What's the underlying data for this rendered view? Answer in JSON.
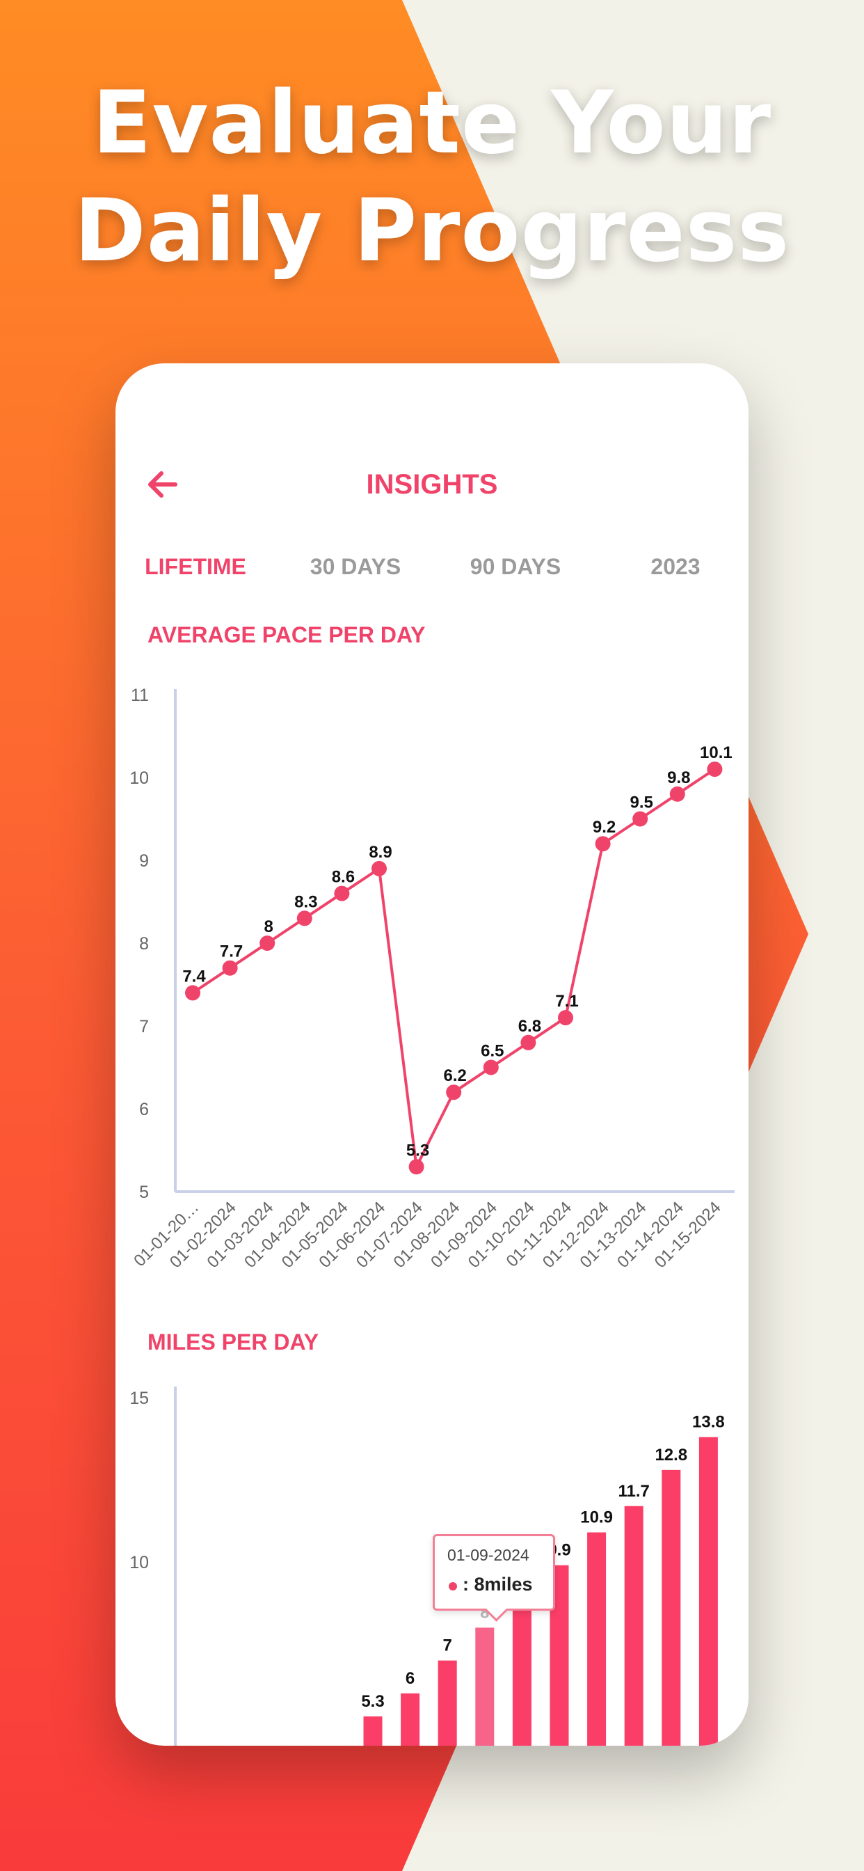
{
  "headline": {
    "line1": "Evaluate Your",
    "line2": "Daily Progress"
  },
  "header": {
    "title": "INSIGHTS",
    "back_icon": "arrow-left-icon"
  },
  "tabs": [
    {
      "label": "LIFETIME",
      "active": true
    },
    {
      "label": "30 DAYS",
      "active": false
    },
    {
      "label": "90 DAYS",
      "active": false
    },
    {
      "label": "2023",
      "active": false
    }
  ],
  "colors": {
    "accent": "#f0436a",
    "bar": "#fb3e67",
    "inactive_tab": "#9a9a9a",
    "orange": "#ff8c24",
    "red": "#f93b3b"
  },
  "chart_data": [
    {
      "type": "line",
      "title": "AVERAGE PACE PER DAY",
      "x": [
        "01-01-20…",
        "01-02-2024",
        "01-03-2024",
        "01-04-2024",
        "01-05-2024",
        "01-06-2024",
        "01-07-2024",
        "01-08-2024",
        "01-09-2024",
        "01-10-2024",
        "01-11-2024",
        "01-12-2024",
        "01-13-2024",
        "01-14-2024",
        "01-15-2024"
      ],
      "values": [
        7.4,
        7.7,
        8,
        8.3,
        8.6,
        8.9,
        5.3,
        6.2,
        6.5,
        6.8,
        7.1,
        9.2,
        9.5,
        9.8,
        10.1
      ],
      "ylim": [
        5,
        11
      ],
      "yticks": [
        5,
        6,
        7,
        8,
        9,
        10,
        11
      ],
      "grid": false
    },
    {
      "type": "bar",
      "title": "MILES PER DAY",
      "values": [
        5.3,
        6,
        7,
        8,
        8.9,
        9.9,
        10.9,
        11.7,
        12.8,
        13.8
      ],
      "value_labels": [
        "5.3",
        "6",
        "7",
        "8",
        "8.9",
        "9.9",
        "10.9",
        "11.7",
        "12.8",
        "13.8"
      ],
      "ylim": [
        5,
        15
      ],
      "yticks": [
        10,
        15
      ],
      "highlighted_index": 3,
      "tooltip": {
        "date": "01-09-2024",
        "text": ": 8miles"
      }
    }
  ]
}
